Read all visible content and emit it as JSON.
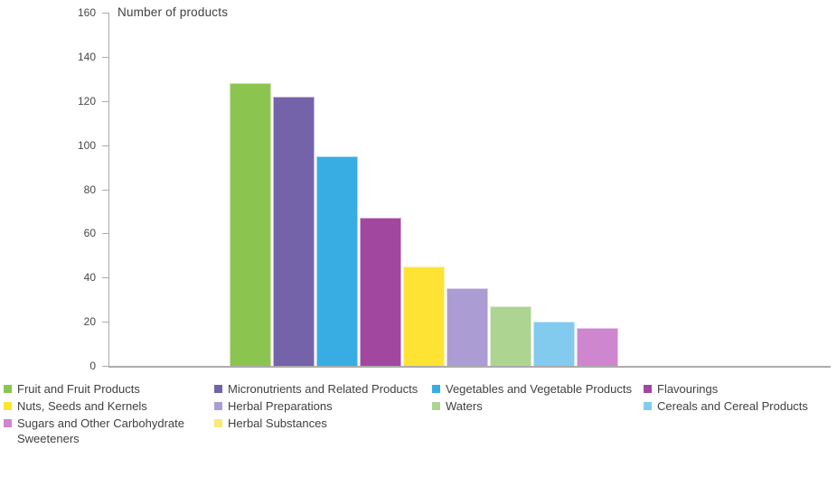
{
  "title": "Number of products",
  "chart_data": {
    "type": "bar",
    "title": "Number of products",
    "ylabel": "Number of products",
    "xlabel": "",
    "ylim": [
      0,
      160
    ],
    "y_ticks": [
      0,
      20,
      40,
      60,
      80,
      100,
      120,
      140,
      160
    ],
    "grid": false,
    "legend_position": "bottom",
    "series": [
      {
        "name": "Fruit and Fruit Products",
        "value": 128,
        "color": "#8cc450"
      },
      {
        "name": "Micronutrients and Related Products",
        "value": 122,
        "color": "#7563a9"
      },
      {
        "name": "Vegetables and Vegetable Products",
        "value": 95,
        "color": "#38ade3"
      },
      {
        "name": "Flavourings",
        "value": 67,
        "color": "#a2479f"
      },
      {
        "name": "Nuts, Seeds and Kernels",
        "value": 45,
        "color": "#ffe334"
      },
      {
        "name": "Herbal Preparations",
        "value": 35,
        "color": "#ac9cd4"
      },
      {
        "name": "Waters",
        "value": 27,
        "color": "#aed491"
      },
      {
        "name": "Cereals and Cereal Products",
        "value": 20,
        "color": "#82cbee"
      },
      {
        "name": "Sugars and Other Carbohydrate Sweeteners",
        "value": 17,
        "color": "#ce86cf"
      },
      {
        "name": "Herbal Substances",
        "value": 0,
        "color": "#f8eb72"
      }
    ]
  },
  "axis": {
    "line_color": "#ababab",
    "tick_label_color": "#474747"
  },
  "text_color": "#3f3f3f"
}
